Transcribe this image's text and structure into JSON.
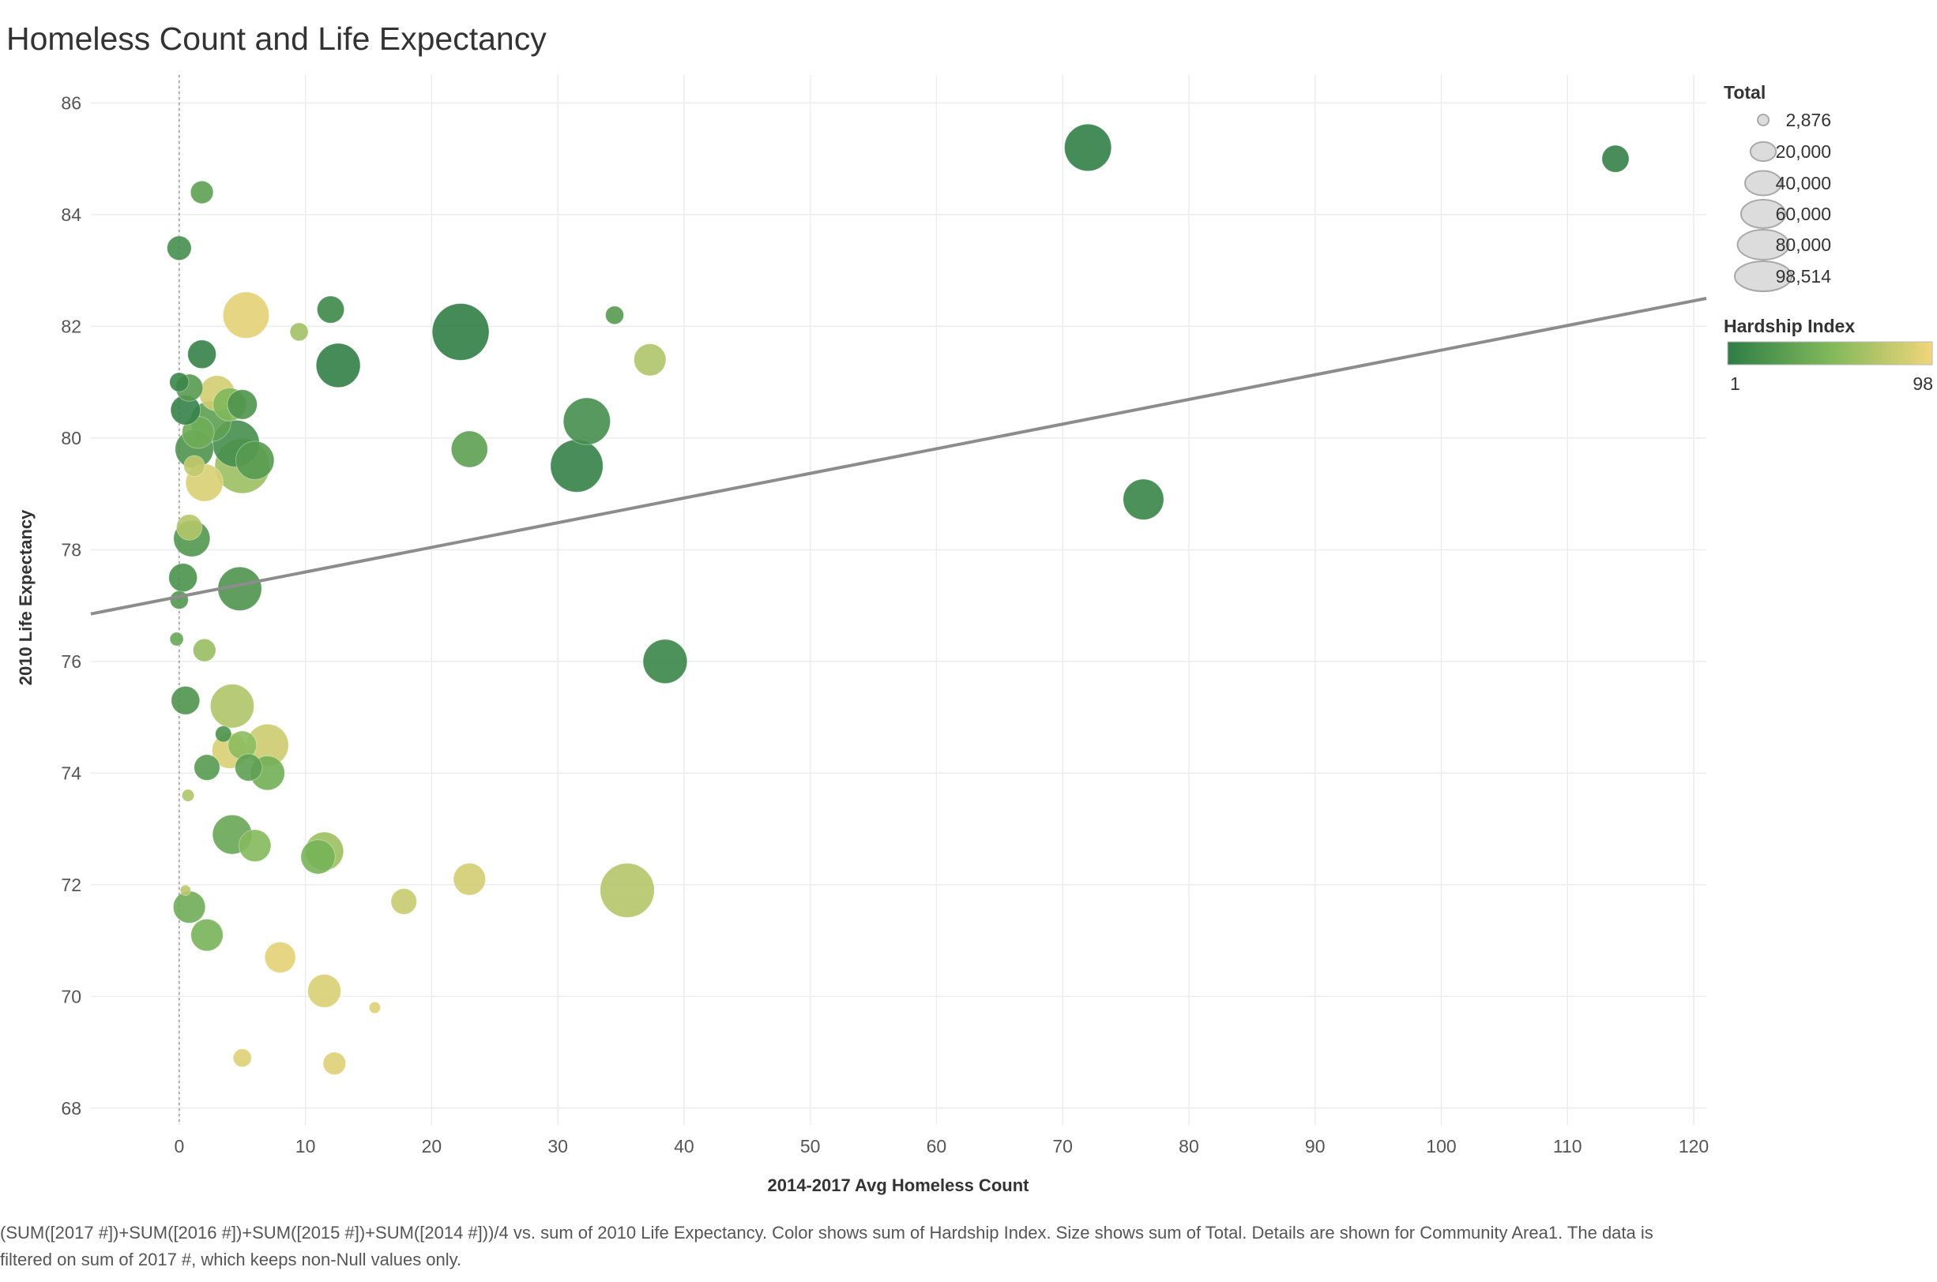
{
  "title": "Homeless Count and Life Expectancy",
  "caption": "(SUM([2017 #])+SUM([2016 #])+SUM([2015 #])+SUM([2014 #]))/4 vs. sum of 2010 Life Expectancy.  Color shows sum of Hardship Index.  Size shows sum of Total.  Details are shown for Community Area1. The data is filtered on sum of 2017 #, which keeps non-Null values only.",
  "legend": {
    "size_title": "Total",
    "size_values": [
      2876,
      20000,
      40000,
      60000,
      80000,
      98514
    ],
    "size_labels": [
      "2,876",
      "20,000",
      "40,000",
      "60,000",
      "80,000",
      "98,514"
    ],
    "color_title": "Hardship Index",
    "color_min_label": "1",
    "color_max_label": "98",
    "color_low": "#2e7d46",
    "color_mid": "#7fb85a",
    "color_high": "#f1d57a"
  },
  "chart_data": {
    "type": "scatter",
    "title": "Homeless Count and Life Expectancy",
    "xlabel": "2014-2017 Avg Homeless Count",
    "ylabel": "2010 Life Expectancy",
    "xlim": [
      -7,
      121
    ],
    "ylim": [
      67.7,
      86.5
    ],
    "xticks": [
      0,
      10,
      20,
      30,
      40,
      50,
      60,
      70,
      80,
      90,
      100,
      110,
      120
    ],
    "yticks": [
      68,
      70,
      72,
      74,
      76,
      78,
      80,
      82,
      84,
      86
    ],
    "grid": true,
    "zero_line": true,
    "trend_line": {
      "x": [
        -7,
        121
      ],
      "y": [
        76.85,
        82.5
      ]
    },
    "points": [
      {
        "x": 72.0,
        "y": 85.2,
        "total": 60000,
        "hardship": 3
      },
      {
        "x": 113.8,
        "y": 85.0,
        "total": 20000,
        "hardship": 5
      },
      {
        "x": 1.8,
        "y": 84.4,
        "total": 14000,
        "hardship": 30
      },
      {
        "x": 0.0,
        "y": 83.4,
        "total": 16000,
        "hardship": 15
      },
      {
        "x": 5.3,
        "y": 82.2,
        "total": 58000,
        "hardship": 92
      },
      {
        "x": 12.0,
        "y": 82.3,
        "total": 20000,
        "hardship": 10
      },
      {
        "x": 9.5,
        "y": 81.9,
        "total": 9000,
        "hardship": 65
      },
      {
        "x": 22.3,
        "y": 81.9,
        "total": 88000,
        "hardship": 2
      },
      {
        "x": 34.5,
        "y": 82.2,
        "total": 9000,
        "hardship": 25
      },
      {
        "x": 37.3,
        "y": 81.4,
        "total": 28000,
        "hardship": 70
      },
      {
        "x": 1.8,
        "y": 81.5,
        "total": 22000,
        "hardship": 5
      },
      {
        "x": 12.6,
        "y": 81.3,
        "total": 53000,
        "hardship": 3
      },
      {
        "x": 0.0,
        "y": 81.0,
        "total": 10000,
        "hardship": 8
      },
      {
        "x": 0.8,
        "y": 80.9,
        "total": 20000,
        "hardship": 25
      },
      {
        "x": 3.0,
        "y": 80.8,
        "total": 34000,
        "hardship": 85
      },
      {
        "x": 5.0,
        "y": 80.6,
        "total": 24000,
        "hardship": 20
      },
      {
        "x": 4.0,
        "y": 80.6,
        "total": 30000,
        "hardship": 50
      },
      {
        "x": 0.5,
        "y": 80.5,
        "total": 24000,
        "hardship": 5
      },
      {
        "x": 2.5,
        "y": 80.3,
        "total": 45000,
        "hardship": 30
      },
      {
        "x": 1.5,
        "y": 80.1,
        "total": 28000,
        "hardship": 40
      },
      {
        "x": 32.3,
        "y": 80.3,
        "total": 60000,
        "hardship": 15
      },
      {
        "x": 4.5,
        "y": 79.9,
        "total": 60000,
        "hardship": 15
      },
      {
        "x": 1.2,
        "y": 79.8,
        "total": 40000,
        "hardship": 20
      },
      {
        "x": 6.0,
        "y": 79.6,
        "total": 40000,
        "hardship": 25
      },
      {
        "x": 1.2,
        "y": 79.5,
        "total": 12000,
        "hardship": 78
      },
      {
        "x": 5.0,
        "y": 79.5,
        "total": 82000,
        "hardship": 62
      },
      {
        "x": 23.0,
        "y": 79.8,
        "total": 36000,
        "hardship": 30
      },
      {
        "x": 31.5,
        "y": 79.5,
        "total": 75000,
        "hardship": 5
      },
      {
        "x": 2.0,
        "y": 79.2,
        "total": 38000,
        "hardship": 88
      },
      {
        "x": 76.4,
        "y": 78.9,
        "total": 45000,
        "hardship": 7
      },
      {
        "x": 0.8,
        "y": 78.4,
        "total": 18000,
        "hardship": 72
      },
      {
        "x": 1.0,
        "y": 78.2,
        "total": 36000,
        "hardship": 22
      },
      {
        "x": 0.3,
        "y": 77.5,
        "total": 22000,
        "hardship": 18
      },
      {
        "x": 4.8,
        "y": 77.3,
        "total": 52000,
        "hardship": 20
      },
      {
        "x": 0.0,
        "y": 77.1,
        "total": 9000,
        "hardship": 22
      },
      {
        "x": 38.5,
        "y": 76.0,
        "total": 53000,
        "hardship": 8
      },
      {
        "x": -0.2,
        "y": 76.4,
        "total": 5000,
        "hardship": 35
      },
      {
        "x": 2.0,
        "y": 76.2,
        "total": 14000,
        "hardship": 60
      },
      {
        "x": 0.5,
        "y": 75.3,
        "total": 22000,
        "hardship": 20
      },
      {
        "x": 4.2,
        "y": 75.2,
        "total": 52000,
        "hardship": 70
      },
      {
        "x": 3.5,
        "y": 74.7,
        "total": 7000,
        "hardship": 18
      },
      {
        "x": 4.0,
        "y": 74.4,
        "total": 34000,
        "hardship": 88
      },
      {
        "x": 7.0,
        "y": 74.5,
        "total": 48000,
        "hardship": 82
      },
      {
        "x": 5.0,
        "y": 74.5,
        "total": 22000,
        "hardship": 55
      },
      {
        "x": 2.2,
        "y": 74.1,
        "total": 18000,
        "hardship": 25
      },
      {
        "x": 5.5,
        "y": 74.1,
        "total": 20000,
        "hardship": 30
      },
      {
        "x": 7.0,
        "y": 74.0,
        "total": 32000,
        "hardship": 42
      },
      {
        "x": 0.7,
        "y": 73.6,
        "total": 4000,
        "hardship": 70
      },
      {
        "x": 4.2,
        "y": 72.9,
        "total": 42000,
        "hardship": 35
      },
      {
        "x": 6.0,
        "y": 72.7,
        "total": 28000,
        "hardship": 52
      },
      {
        "x": 11.5,
        "y": 72.6,
        "total": 40000,
        "hardship": 62
      },
      {
        "x": 11.0,
        "y": 72.5,
        "total": 32000,
        "hardship": 45
      },
      {
        "x": 23.0,
        "y": 72.1,
        "total": 28000,
        "hardship": 85
      },
      {
        "x": 35.5,
        "y": 71.9,
        "total": 80000,
        "hardship": 72
      },
      {
        "x": 0.5,
        "y": 71.9,
        "total": 3000,
        "hardship": 75
      },
      {
        "x": 17.8,
        "y": 71.7,
        "total": 18000,
        "hardship": 80
      },
      {
        "x": 0.8,
        "y": 71.6,
        "total": 28000,
        "hardship": 40
      },
      {
        "x": 2.2,
        "y": 71.1,
        "total": 28000,
        "hardship": 45
      },
      {
        "x": 8.0,
        "y": 70.7,
        "total": 26000,
        "hardship": 92
      },
      {
        "x": 11.5,
        "y": 70.1,
        "total": 30000,
        "hardship": 88
      },
      {
        "x": 15.5,
        "y": 69.8,
        "total": 3500,
        "hardship": 90
      },
      {
        "x": 5.0,
        "y": 68.9,
        "total": 9000,
        "hardship": 90
      },
      {
        "x": 12.3,
        "y": 68.8,
        "total": 14000,
        "hardship": 90
      }
    ]
  }
}
